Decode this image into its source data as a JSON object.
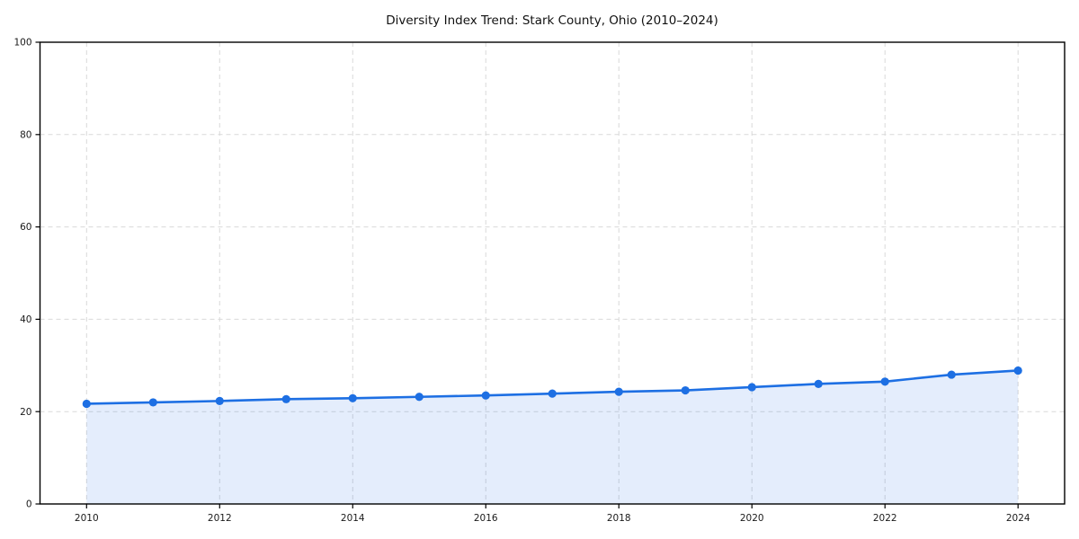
{
  "chart_data": {
    "type": "line",
    "title": "Diversity Index Trend: Stark County, Ohio (2010–2024)",
    "xlabel": "",
    "ylabel": "",
    "x": [
      2010,
      2011,
      2012,
      2013,
      2014,
      2015,
      2016,
      2017,
      2018,
      2019,
      2020,
      2021,
      2022,
      2023,
      2024
    ],
    "values": [
      21.7,
      22.0,
      22.3,
      22.7,
      22.9,
      23.2,
      23.5,
      23.9,
      24.3,
      24.6,
      25.3,
      26.0,
      26.5,
      28.0,
      28.9
    ],
    "ylim": [
      0,
      100
    ],
    "x_domain": [
      2009.3,
      2024.7
    ],
    "x_ticks": [
      2010,
      2012,
      2014,
      2016,
      2018,
      2020,
      2022,
      2024
    ],
    "y_ticks": [
      0,
      20,
      40,
      60,
      80,
      100
    ],
    "grid": true,
    "grid_style": "dashed",
    "legend_position": "none",
    "marker": "circle",
    "area_fill": true,
    "colors": {
      "line": "#1d6fe3",
      "fill": "#1d6fe3",
      "fill_opacity": 0.12,
      "grid": "#d9d9d9",
      "axis": "#000000",
      "text": "#1a1a1a",
      "background": "#ffffff"
    }
  }
}
